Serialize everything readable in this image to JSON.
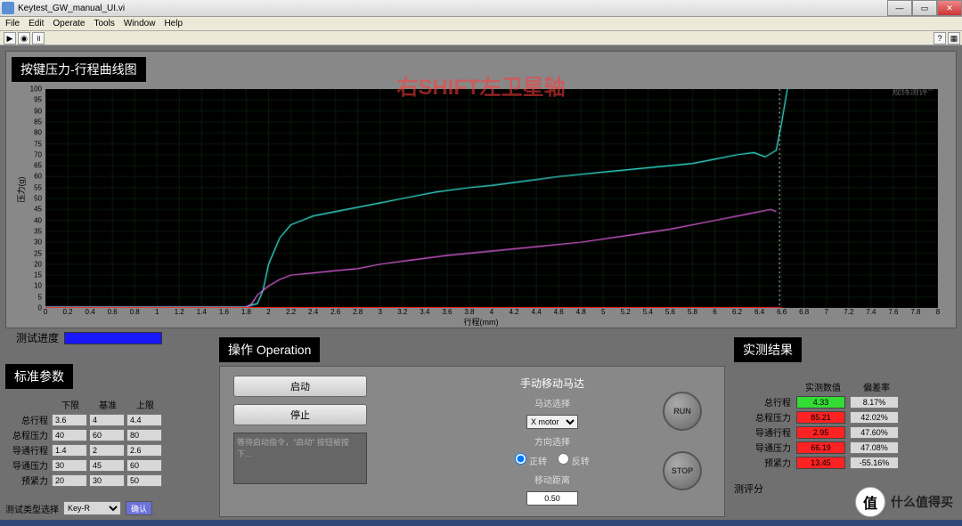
{
  "window": {
    "title": "Keytest_GW_manual_UI.vi"
  },
  "menu": {
    "file": "File",
    "edit": "Edit",
    "operate": "Operate",
    "tools": "Tools",
    "window": "Window",
    "help": "Help"
  },
  "chart": {
    "title": "按键压力-行程曲线图",
    "overlay": "右SHIFT左卫星轴",
    "logo_mark": "⌢W⌣",
    "logo_text": "规纬测评",
    "y_label": "压力(g)",
    "x_label": "行程(mm)",
    "y_min": 0,
    "y_max": 100,
    "y_step": 5,
    "x_min": 0,
    "x_max": 8,
    "x_step": 0.2,
    "bg_color": "#000000",
    "grid_color": "#143514",
    "series": [
      {
        "color": "#39f5e6",
        "width": 1.2,
        "points": [
          [
            0,
            0.5
          ],
          [
            1.8,
            0.6
          ],
          [
            1.9,
            2
          ],
          [
            1.95,
            8
          ],
          [
            2.0,
            20
          ],
          [
            2.1,
            32
          ],
          [
            2.2,
            38
          ],
          [
            2.3,
            40
          ],
          [
            2.4,
            42
          ],
          [
            2.6,
            44
          ],
          [
            2.8,
            46
          ],
          [
            3.0,
            48
          ],
          [
            3.2,
            50
          ],
          [
            3.5,
            53
          ],
          [
            3.8,
            55
          ],
          [
            4.0,
            56
          ],
          [
            4.3,
            58
          ],
          [
            4.6,
            60
          ],
          [
            5.0,
            62
          ],
          [
            5.4,
            64
          ],
          [
            5.8,
            66
          ],
          [
            6.0,
            68
          ],
          [
            6.2,
            70
          ],
          [
            6.35,
            71
          ],
          [
            6.45,
            69
          ],
          [
            6.55,
            72
          ],
          [
            6.6,
            85
          ],
          [
            6.65,
            100
          ]
        ]
      },
      {
        "color": "#e866e8",
        "width": 1.2,
        "points": [
          [
            0,
            0.3
          ],
          [
            1.8,
            0.4
          ],
          [
            1.85,
            2
          ],
          [
            1.9,
            6
          ],
          [
            2.0,
            10
          ],
          [
            2.1,
            13
          ],
          [
            2.2,
            15
          ],
          [
            2.4,
            16
          ],
          [
            2.6,
            17
          ],
          [
            2.8,
            18
          ],
          [
            3.0,
            20
          ],
          [
            3.3,
            22
          ],
          [
            3.6,
            24
          ],
          [
            4.0,
            26
          ],
          [
            4.4,
            28
          ],
          [
            4.8,
            30
          ],
          [
            5.2,
            33
          ],
          [
            5.6,
            36
          ],
          [
            6.0,
            40
          ],
          [
            6.3,
            43
          ],
          [
            6.5,
            45
          ],
          [
            6.55,
            44
          ]
        ]
      },
      {
        "color": "#ff2222",
        "width": 1,
        "points": [
          [
            0,
            0.2
          ],
          [
            6.6,
            0.2
          ]
        ]
      }
    ],
    "dotted_marker": {
      "x": 6.58,
      "color": "#ffffff"
    }
  },
  "progress": {
    "label": "测试进度"
  },
  "std": {
    "title": "标准参数",
    "headers": {
      "low": "下限",
      "base": "基准",
      "up": "上限"
    },
    "rows": [
      {
        "label": "总行程",
        "low": "3.6",
        "base": "4",
        "up": "4.4"
      },
      {
        "label": "总程压力",
        "low": "40",
        "base": "60",
        "up": "80"
      },
      {
        "label": "导通行程",
        "low": "1.4",
        "base": "2",
        "up": "2.6"
      },
      {
        "label": "导通压力",
        "low": "30",
        "base": "45",
        "up": "60"
      },
      {
        "label": "预紧力",
        "low": "20",
        "base": "30",
        "up": "50"
      }
    ],
    "type_label": "测试类型选择",
    "type_value": "Key-R",
    "type_btn": "确认"
  },
  "op": {
    "title": "操作 Operation",
    "start": "启动",
    "stop": "停止",
    "log_placeholder": "等待启动指令，\"启动\" 按钮被按下...",
    "manual_title": "手动移动马达",
    "motor_label": "马达选择",
    "motor_value": "X motor",
    "dir_label": "方向选择",
    "dir_fwd": "正转",
    "dir_rev": "反转",
    "dist_label": "移动距离",
    "dist_value": "0.50",
    "run": "RUN",
    "stop_round": "STOP"
  },
  "res": {
    "title": "实测结果",
    "headers": {
      "val": "实测数值",
      "off": "偏差率"
    },
    "rows": [
      {
        "label": "总行程",
        "val": "4.33",
        "bg": "#33dd33",
        "off": "8.17%"
      },
      {
        "label": "总程压力",
        "val": "85.21",
        "bg": "#ff2222",
        "off": "42.02%"
      },
      {
        "label": "导通行程",
        "val": "2.95",
        "bg": "#ff2222",
        "off": "47.60%"
      },
      {
        "label": "导通压力",
        "val": "66.19",
        "bg": "#ff2222",
        "off": "47.08%"
      },
      {
        "label": "预紧力",
        "val": "13.45",
        "bg": "#ff2222",
        "off": "-55.16%"
      }
    ],
    "score_label": "测评分",
    "score_value": ""
  },
  "watermark": {
    "char": "值",
    "text": "什么值得买"
  }
}
